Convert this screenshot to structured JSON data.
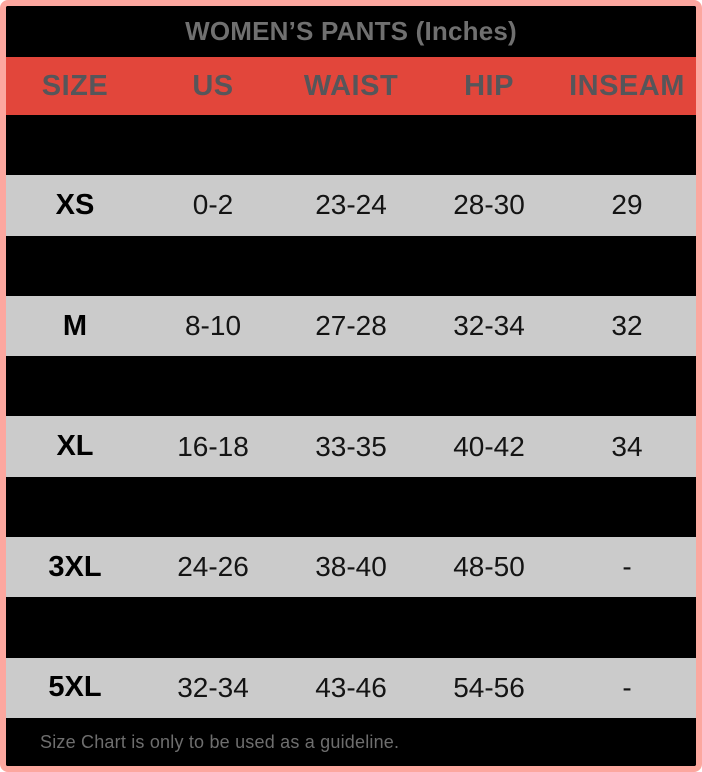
{
  "header": {
    "title": "WOMEN’S PANTS (Inches)"
  },
  "table": {
    "columns": [
      "SIZE",
      "US",
      "WAIST",
      "HIP",
      "INSEAM"
    ],
    "rows": [
      {
        "visible": false,
        "cells": [
          "",
          "",
          "",
          "",
          ""
        ]
      },
      {
        "visible": true,
        "cells": [
          "XS",
          "0-2",
          "23-24",
          "28-30",
          "29"
        ]
      },
      {
        "visible": false,
        "cells": [
          "",
          "",
          "",
          "",
          ""
        ]
      },
      {
        "visible": true,
        "cells": [
          "M",
          "8-10",
          "27-28",
          "32-34",
          "32"
        ]
      },
      {
        "visible": false,
        "cells": [
          "",
          "",
          "",
          "",
          ""
        ]
      },
      {
        "visible": true,
        "cells": [
          "XL",
          "16-18",
          "33-35",
          "40-42",
          "34"
        ]
      },
      {
        "visible": false,
        "cells": [
          "",
          "",
          "",
          "",
          ""
        ]
      },
      {
        "visible": true,
        "cells": [
          "3XL",
          "24-26",
          "38-40",
          "48-50",
          "-"
        ]
      },
      {
        "visible": false,
        "cells": [
          "",
          "",
          "",
          "",
          ""
        ]
      },
      {
        "visible": true,
        "cells": [
          "5XL",
          "32-34",
          "43-46",
          "54-56",
          "-"
        ]
      }
    ]
  },
  "footer": {
    "note": "Size Chart is only to be used as a guideline."
  },
  "colors": {
    "accent_red": "#E2463B",
    "border_pink": "#FCA79F",
    "row_gray": "#CBCBCB",
    "row_black": "#000000",
    "title_text": "#707070",
    "header_text": "#56565A",
    "cell_text": "#141414",
    "footer_text": "#6E6E6E"
  },
  "chart_data": {
    "type": "table",
    "title": "WOMEN’S PANTS (Inches)",
    "columns": [
      "SIZE",
      "US",
      "WAIST",
      "HIP",
      "INSEAM"
    ],
    "rows": [
      [
        "XS",
        "0-2",
        "23-24",
        "28-30",
        "29"
      ],
      [
        "M",
        "8-10",
        "27-28",
        "32-34",
        "32"
      ],
      [
        "XL",
        "16-18",
        "33-35",
        "40-42",
        "34"
      ],
      [
        "3XL",
        "24-26",
        "38-40",
        "48-50",
        "-"
      ],
      [
        "5XL",
        "32-34",
        "43-46",
        "54-56",
        "-"
      ]
    ],
    "note": "Size Chart is only to be used as a guideline.",
    "grid": false,
    "legend_position": "none",
    "layout_hint": "alternating spacer rows rendered solid black with no legible values"
  }
}
